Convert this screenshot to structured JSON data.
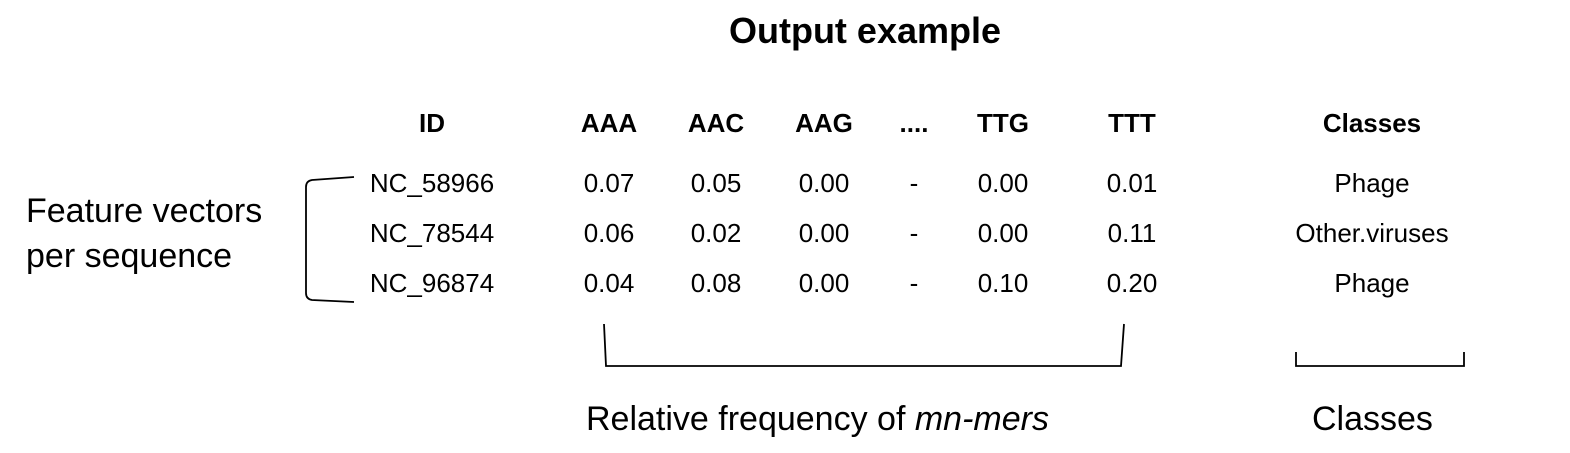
{
  "title": "Output example",
  "side_label": [
    "Feature vectors",
    "per sequence"
  ],
  "table": {
    "headers": [
      "ID",
      "AAA",
      "AAC",
      "AAG",
      "....",
      "TTG",
      "TTT",
      "Classes"
    ],
    "rows": [
      [
        "NC_58966",
        "0.07",
        "0.05",
        "0.00",
        "-",
        "0.00",
        "0.01",
        "Phage"
      ],
      [
        "NC_78544",
        "0.06",
        "0.02",
        "0.00",
        "-",
        "0.00",
        "0.11",
        "Other.viruses"
      ],
      [
        "NC_96874",
        "0.04",
        "0.08",
        "0.00",
        "-",
        "0.10",
        "0.20",
        "Phage"
      ]
    ]
  },
  "captions": {
    "frequency_prefix": "Relative frequency of ",
    "frequency_italic": "mn-mers",
    "classes": "Classes"
  }
}
